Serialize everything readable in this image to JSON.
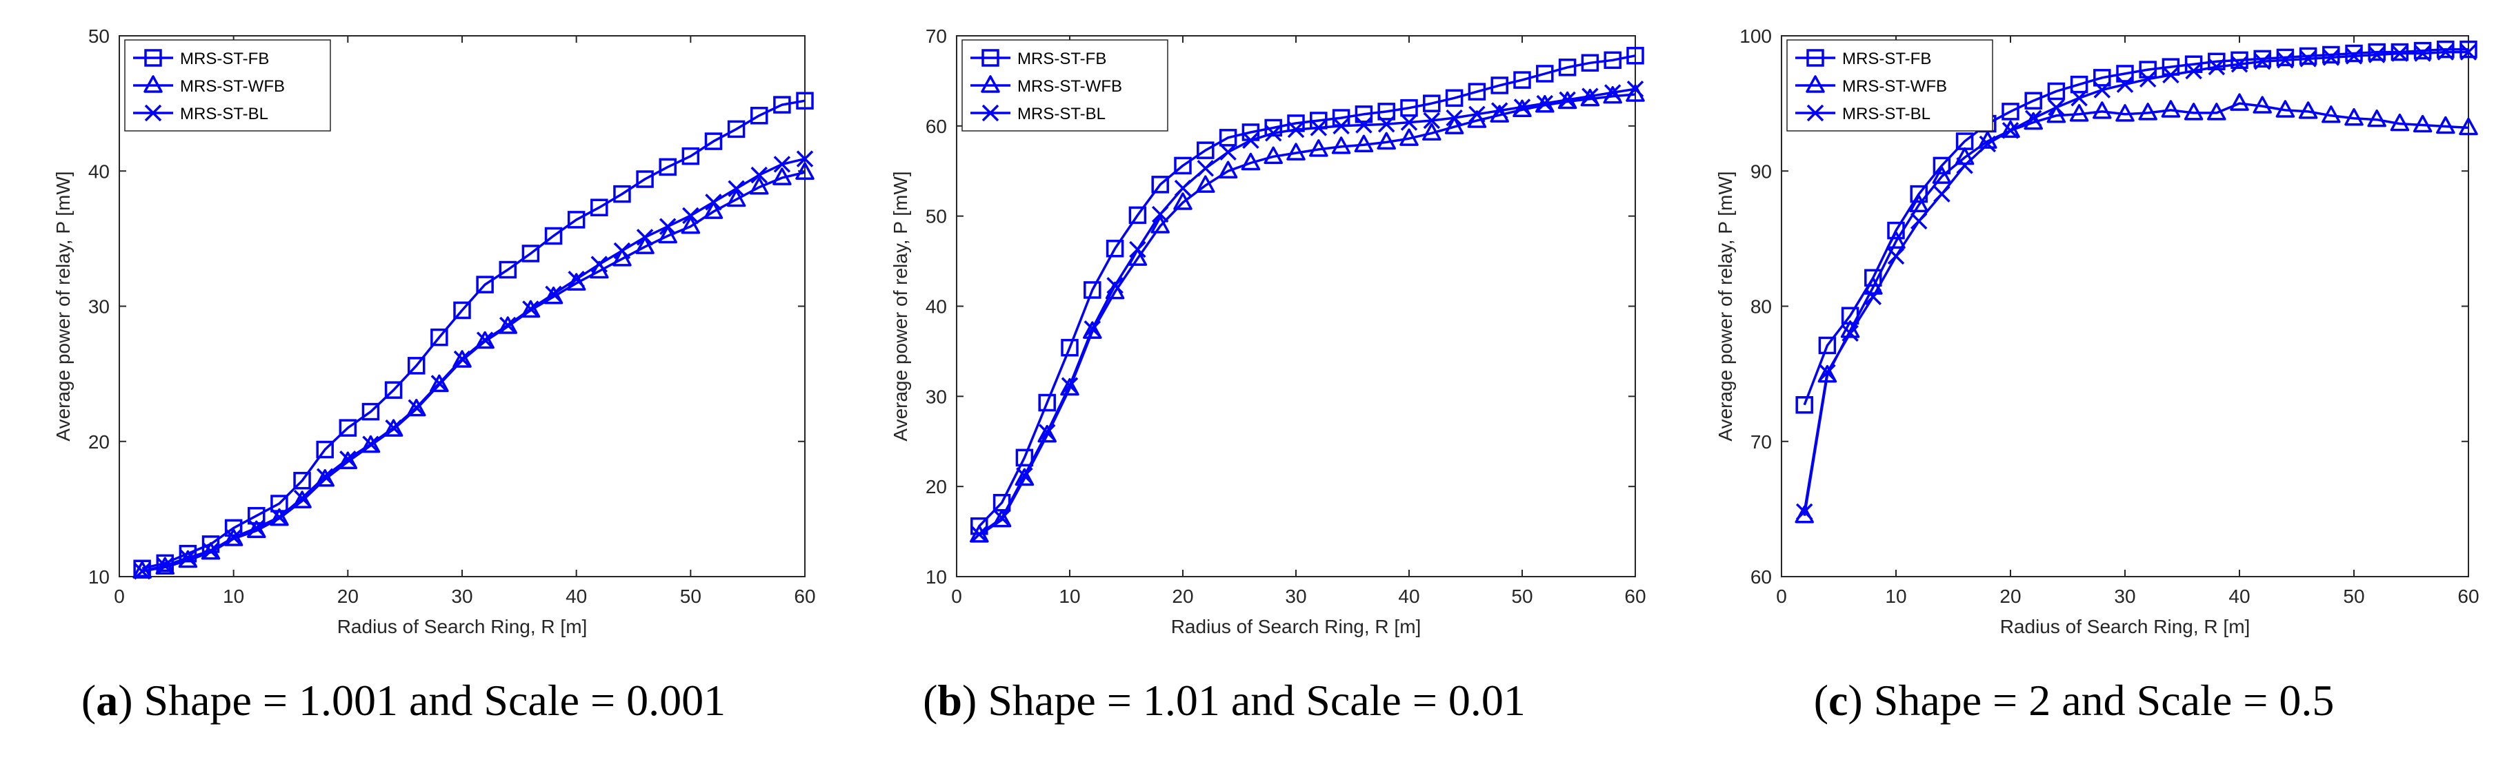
{
  "colors": {
    "series": "#0000ff",
    "axis": "#262626",
    "background": "#ffffff"
  },
  "markers": [
    "square",
    "triangle",
    "x"
  ],
  "chart_data": [
    {
      "type": "line",
      "caption": {
        "open": "(",
        "letter": "a",
        "text": ") Shape = 1.001 and Scale = 0.001"
      },
      "xlabel": "Radius of Search Ring, R [m]",
      "ylabel": "Average power of relay, P [mW]",
      "xlim": [
        0,
        60
      ],
      "ylim": [
        10,
        50
      ],
      "xticks": [
        0,
        10,
        20,
        30,
        40,
        50,
        60
      ],
      "yticks": [
        10,
        20,
        30,
        40,
        50
      ],
      "legend_position": "top-left",
      "x": [
        2,
        4,
        6,
        8,
        10,
        12,
        14,
        16,
        18,
        20,
        22,
        24,
        26,
        28,
        30,
        32,
        34,
        36,
        38,
        40,
        42,
        44,
        46,
        48,
        50,
        52,
        54,
        56,
        58,
        60
      ],
      "series": [
        {
          "name": "MRS-ST-FB",
          "marker": "square",
          "values": [
            10.6,
            11.0,
            11.7,
            12.4,
            13.6,
            14.5,
            15.4,
            17.1,
            19.4,
            21.0,
            22.2,
            23.8,
            25.6,
            27.7,
            29.7,
            31.6,
            32.7,
            33.9,
            35.2,
            36.4,
            37.3,
            38.3,
            39.4,
            40.3,
            41.1,
            42.2,
            43.1,
            44.1,
            44.9,
            45.2
          ]
        },
        {
          "name": "MRS-ST-WFB",
          "marker": "triangle",
          "values": [
            10.4,
            10.7,
            11.2,
            11.8,
            12.8,
            13.4,
            14.3,
            15.6,
            17.2,
            18.5,
            19.7,
            20.9,
            22.4,
            24.2,
            26.0,
            27.4,
            28.5,
            29.7,
            30.7,
            31.7,
            32.6,
            33.5,
            34.4,
            35.2,
            35.9,
            37.0,
            37.9,
            38.8,
            39.5,
            39.9
          ]
        },
        {
          "name": "MRS-ST-BL",
          "marker": "x",
          "values": [
            10.4,
            10.8,
            11.4,
            11.9,
            12.9,
            13.6,
            14.4,
            15.8,
            17.4,
            18.7,
            19.8,
            21.0,
            22.5,
            24.3,
            26.1,
            27.5,
            28.6,
            29.8,
            30.9,
            32.0,
            33.1,
            34.1,
            35.1,
            35.9,
            36.7,
            37.7,
            38.7,
            39.7,
            40.5,
            40.9
          ]
        }
      ]
    },
    {
      "type": "line",
      "caption": {
        "open": "(",
        "letter": "b",
        "text": ") Shape = 1.01 and Scale = 0.01"
      },
      "xlabel": "Radius of Search Ring, R [m]",
      "ylabel": "Average power of relay, P [mW]",
      "xlim": [
        0,
        60
      ],
      "ylim": [
        10,
        70
      ],
      "xticks": [
        0,
        10,
        20,
        30,
        40,
        50,
        60
      ],
      "yticks": [
        10,
        20,
        30,
        40,
        50,
        60,
        70
      ],
      "legend_position": "top-left",
      "x": [
        2,
        4,
        6,
        8,
        10,
        12,
        14,
        16,
        18,
        20,
        22,
        24,
        26,
        28,
        30,
        32,
        34,
        36,
        38,
        40,
        42,
        44,
        46,
        48,
        50,
        52,
        54,
        56,
        58,
        60
      ],
      "series": [
        {
          "name": "MRS-ST-FB",
          "marker": "square",
          "values": [
            15.6,
            18.2,
            23.2,
            29.3,
            35.4,
            41.8,
            46.4,
            50.1,
            53.5,
            55.6,
            57.3,
            58.7,
            59.3,
            59.8,
            60.3,
            60.6,
            60.9,
            61.3,
            61.6,
            62.0,
            62.5,
            63.1,
            63.8,
            64.5,
            65.1,
            65.8,
            66.5,
            67.0,
            67.3,
            67.8
          ]
        },
        {
          "name": "MRS-ST-WFB",
          "marker": "triangle",
          "values": [
            14.6,
            16.3,
            20.9,
            25.7,
            30.9,
            37.2,
            41.6,
            45.3,
            48.9,
            51.5,
            53.4,
            55.0,
            55.9,
            56.6,
            57.0,
            57.4,
            57.7,
            57.9,
            58.2,
            58.6,
            59.2,
            59.9,
            60.6,
            61.2,
            61.8,
            62.3,
            62.7,
            63.0,
            63.3,
            63.5
          ]
        },
        {
          "name": "MRS-ST-BL",
          "marker": "x",
          "values": [
            14.7,
            16.5,
            21.2,
            26.0,
            31.2,
            37.5,
            42.3,
            46.3,
            50.2,
            53.1,
            55.3,
            57.1,
            58.4,
            59.2,
            59.6,
            59.8,
            60.0,
            60.1,
            60.2,
            60.4,
            60.6,
            60.9,
            61.3,
            61.7,
            62.1,
            62.5,
            62.9,
            63.3,
            63.7,
            64.1
          ]
        }
      ]
    },
    {
      "type": "line",
      "caption": {
        "open": "(",
        "letter": "c",
        "text": ") Shape = 2 and Scale = 0.5"
      },
      "xlabel": "Radius of Search Ring, R [m]",
      "ylabel": "Average power of relay, P [mW]",
      "xlim": [
        0,
        60
      ],
      "ylim": [
        60,
        100
      ],
      "xticks": [
        0,
        10,
        20,
        30,
        40,
        50,
        60
      ],
      "yticks": [
        60,
        70,
        80,
        90,
        100
      ],
      "legend_position": "top-left",
      "x": [
        2,
        4,
        6,
        8,
        10,
        12,
        14,
        16,
        18,
        20,
        22,
        24,
        26,
        28,
        30,
        32,
        34,
        36,
        38,
        40,
        42,
        44,
        46,
        48,
        50,
        52,
        54,
        56,
        58,
        60
      ],
      "series": [
        {
          "name": "MRS-ST-FB",
          "marker": "square",
          "values": [
            72.7,
            77.1,
            79.3,
            82.1,
            85.6,
            88.3,
            90.4,
            92.2,
            93.5,
            94.4,
            95.2,
            95.9,
            96.4,
            96.9,
            97.2,
            97.5,
            97.7,
            97.9,
            98.1,
            98.2,
            98.3,
            98.4,
            98.5,
            98.6,
            98.7,
            98.8,
            98.8,
            98.9,
            99.0,
            99.0
          ]
        },
        {
          "name": "MRS-ST-WFB",
          "marker": "triangle",
          "values": [
            64.5,
            74.9,
            78.2,
            81.4,
            84.8,
            87.5,
            89.6,
            91.0,
            92.2,
            93.0,
            93.6,
            94.1,
            94.2,
            94.4,
            94.2,
            94.3,
            94.5,
            94.3,
            94.3,
            95.0,
            94.8,
            94.5,
            94.4,
            94.1,
            93.9,
            93.8,
            93.5,
            93.4,
            93.3,
            93.2
          ]
        },
        {
          "name": "MRS-ST-BL",
          "marker": "x",
          "values": [
            64.8,
            75.1,
            78.0,
            80.7,
            83.7,
            86.3,
            88.3,
            90.4,
            92.0,
            93.0,
            93.9,
            94.7,
            95.4,
            96.0,
            96.4,
            96.8,
            97.1,
            97.4,
            97.7,
            97.9,
            98.1,
            98.2,
            98.3,
            98.4,
            98.5,
            98.6,
            98.7,
            98.7,
            98.8,
            98.8
          ]
        }
      ]
    }
  ]
}
